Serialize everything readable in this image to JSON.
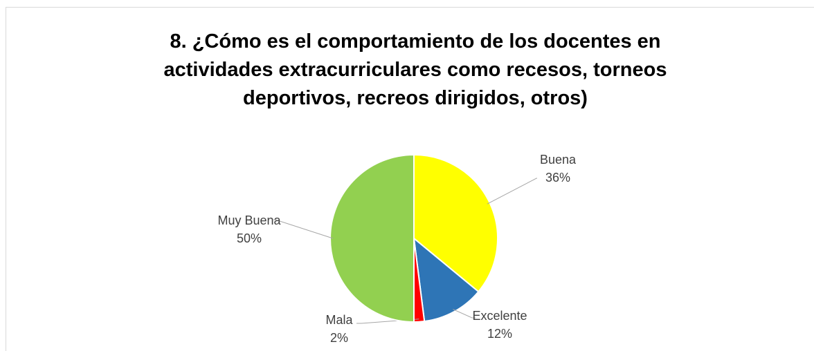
{
  "chart_data": {
    "type": "pie",
    "title": "8. ¿Cómo es el comportamiento de los docentes en actividades extracurriculares como recesos, torneos deportivos, recreos dirigidos, otros)",
    "categories": [
      "Buena",
      "Excelente",
      "Mala",
      "Muy Buena"
    ],
    "values": [
      36,
      12,
      2,
      50
    ],
    "value_labels": [
      "36%",
      "12%",
      "2%",
      "50%"
    ],
    "colors": [
      "#ffff00",
      "#2e75b6",
      "#ff0000",
      "#92d050"
    ]
  }
}
